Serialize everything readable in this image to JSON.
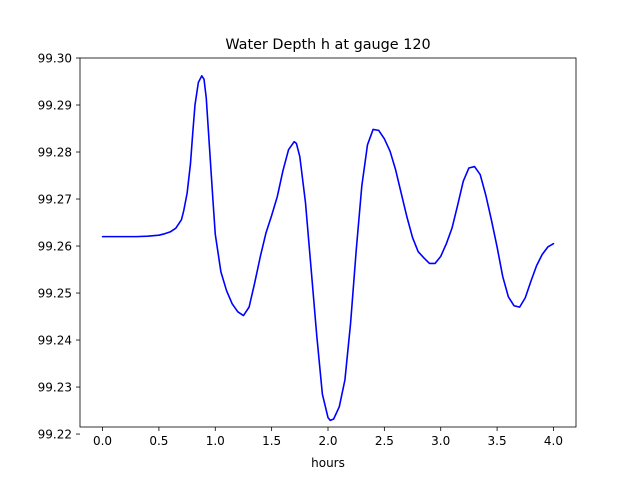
{
  "chart_data": {
    "type": "line",
    "title": "Water Depth h at gauge 120",
    "xlabel": "hours",
    "ylabel": "",
    "xlim": [
      -0.2,
      4.2
    ],
    "ylim": [
      99.2215,
      99.3
    ],
    "xticks": [
      0.0,
      0.5,
      1.0,
      1.5,
      2.0,
      2.5,
      3.0,
      3.5,
      4.0
    ],
    "xtick_labels": [
      "0.0",
      "0.5",
      "1.0",
      "1.5",
      "2.0",
      "2.5",
      "3.0",
      "3.5",
      "4.0"
    ],
    "yticks": [
      99.22,
      99.23,
      99.24,
      99.25,
      99.26,
      99.27,
      99.28,
      99.29,
      99.3
    ],
    "ytick_labels": [
      "99.22",
      "99.23",
      "99.24",
      "99.25",
      "99.26",
      "99.27",
      "99.28",
      "99.29",
      "99.30"
    ],
    "grid": false,
    "series": [
      {
        "color": "#0000ff",
        "x": [
          0.0,
          0.1,
          0.2,
          0.3,
          0.4,
          0.5,
          0.55,
          0.6,
          0.65,
          0.7,
          0.72,
          0.75,
          0.78,
          0.8,
          0.82,
          0.85,
          0.88,
          0.9,
          0.92,
          0.95,
          0.98,
          1.0,
          1.05,
          1.1,
          1.15,
          1.2,
          1.25,
          1.3,
          1.35,
          1.4,
          1.45,
          1.5,
          1.55,
          1.6,
          1.65,
          1.7,
          1.72,
          1.75,
          1.8,
          1.85,
          1.9,
          1.95,
          2.0,
          2.02,
          2.05,
          2.1,
          2.15,
          2.2,
          2.25,
          2.3,
          2.35,
          2.4,
          2.45,
          2.5,
          2.55,
          2.6,
          2.65,
          2.7,
          2.75,
          2.8,
          2.85,
          2.9,
          2.95,
          3.0,
          3.05,
          3.1,
          3.15,
          3.2,
          3.25,
          3.3,
          3.35,
          3.4,
          3.45,
          3.5,
          3.55,
          3.6,
          3.65,
          3.7,
          3.75,
          3.8,
          3.85,
          3.9,
          3.95,
          4.0
        ],
        "y": [
          99.262,
          99.262,
          99.262,
          99.262,
          99.2621,
          99.2623,
          99.2626,
          99.263,
          99.2638,
          99.2656,
          99.2675,
          99.2712,
          99.2775,
          99.284,
          99.29,
          99.2948,
          99.2962,
          99.2955,
          99.2915,
          99.2805,
          99.2695,
          99.2625,
          99.2545,
          99.2505,
          99.2477,
          99.246,
          99.2452,
          99.247,
          99.2522,
          99.2578,
          99.2628,
          99.2665,
          99.2705,
          99.276,
          99.2805,
          99.2822,
          99.2818,
          99.279,
          99.2693,
          99.2552,
          99.241,
          99.2285,
          99.2235,
          99.2229,
          99.2232,
          99.2258,
          99.2315,
          99.2435,
          99.259,
          99.2728,
          99.2815,
          99.2848,
          99.2846,
          99.2828,
          99.2802,
          99.2762,
          99.2712,
          99.2662,
          99.2618,
          99.2588,
          99.2575,
          99.2563,
          99.2563,
          99.2578,
          99.2605,
          99.2638,
          99.2687,
          99.2738,
          99.2766,
          99.2769,
          99.2752,
          99.2708,
          99.2655,
          99.2598,
          99.2535,
          99.2492,
          99.2473,
          99.247,
          99.249,
          99.2525,
          99.2558,
          99.2582,
          99.2598,
          99.2605
        ]
      }
    ]
  }
}
